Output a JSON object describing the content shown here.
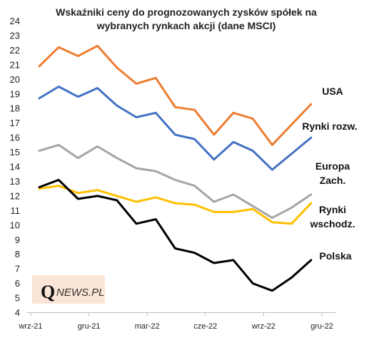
{
  "chart_data": {
    "type": "line",
    "title": [
      "Wskaźniki ceny do prognozowanych  zysków spółek na",
      "wybranych rynkach akcji (dane MSCI)"
    ],
    "ylim": [
      4,
      24
    ],
    "yticks": [
      4,
      5,
      6,
      7,
      8,
      9,
      10,
      11,
      12,
      13,
      14,
      15,
      16,
      17,
      18,
      19,
      20,
      21,
      22,
      23,
      24
    ],
    "x_points": 15,
    "xtick_labels": [
      {
        "index": 0,
        "label": "wrz-21"
      },
      {
        "index": 3,
        "label": "gru-21"
      },
      {
        "index": 6,
        "label": "mar-22"
      },
      {
        "index": 9,
        "label": "cze-22"
      },
      {
        "index": 12,
        "label": "wrz-22"
      },
      {
        "index": 15,
        "label": "gru-22"
      }
    ],
    "grid": false,
    "legend": "inline labels at line ends",
    "series": [
      {
        "name": "USA",
        "color": "#ED7D31",
        "values": [
          20.9,
          22.2,
          21.6,
          22.3,
          20.8,
          19.7,
          20.1,
          18.1,
          17.9,
          16.2,
          17.7,
          17.3,
          15.5,
          16.9,
          18.3
        ]
      },
      {
        "name": "Rynki rozw.",
        "color": "#4472C4",
        "values": [
          18.7,
          19.5,
          18.8,
          19.4,
          18.2,
          17.4,
          17.7,
          16.2,
          15.9,
          14.5,
          15.7,
          15.1,
          13.8,
          14.9,
          16.0
        ]
      },
      {
        "name": "Europa Zach.",
        "color": "#A5A5A5",
        "values": [
          15.1,
          15.5,
          14.6,
          15.4,
          14.6,
          13.9,
          13.7,
          13.1,
          12.7,
          11.6,
          12.1,
          11.3,
          10.5,
          11.2,
          12.1
        ]
      },
      {
        "name": "Rynki wschodz.",
        "color": "#FFC000",
        "values": [
          12.5,
          12.7,
          12.2,
          12.4,
          12.0,
          11.6,
          11.9,
          11.5,
          11.4,
          10.9,
          10.9,
          11.1,
          10.2,
          10.1,
          11.5
        ]
      },
      {
        "name": "Polska",
        "color": "#000000",
        "values": [
          12.6,
          13.1,
          11.8,
          12.0,
          11.7,
          10.1,
          10.4,
          8.4,
          8.1,
          7.4,
          7.6,
          6.0,
          5.5,
          6.4,
          7.6
        ]
      }
    ],
    "series_labels": [
      {
        "lines": [
          "USA"
        ]
      },
      {
        "lines": [
          "Rynki rozw."
        ]
      },
      {
        "lines": [
          "Europa",
          "Zach."
        ]
      },
      {
        "lines": [
          "Rynki",
          "wschodz."
        ]
      },
      {
        "lines": [
          "Polska"
        ]
      }
    ]
  },
  "logo": {
    "q": "Q",
    "rest": "NEWS.PL"
  },
  "colors": {
    "axis": "#BFBFBF",
    "logo_bg": "#FBE5D6"
  }
}
